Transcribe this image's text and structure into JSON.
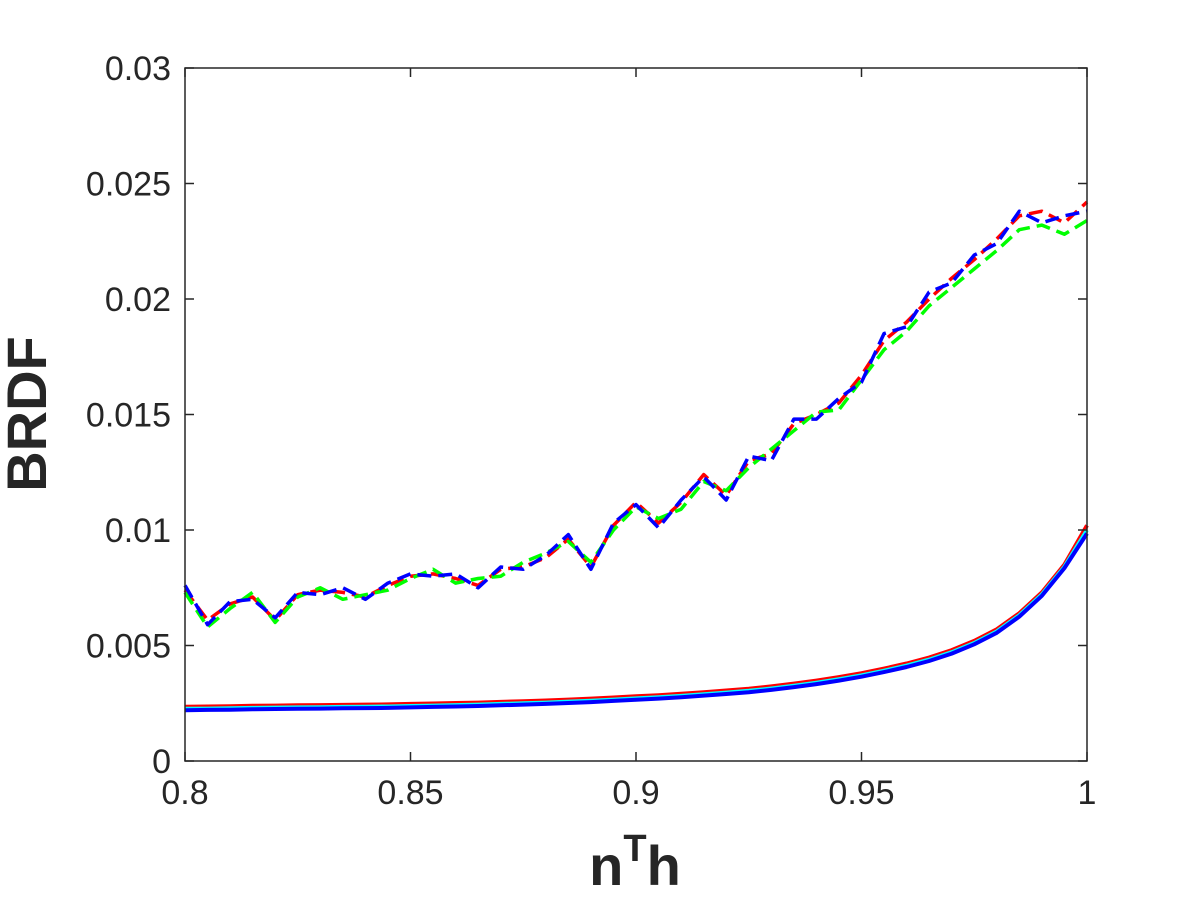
{
  "chart_data": {
    "type": "line",
    "title": "",
    "xlabel": "nTh",
    "xlabel_parts": {
      "base": "n",
      "sup": "T",
      "after": "h"
    },
    "ylabel": "BRDF",
    "xlim": [
      0.8,
      1.0
    ],
    "ylim": [
      0,
      0.03
    ],
    "x_ticks": [
      "0.8",
      "0.85",
      "0.9",
      "0.95",
      "1"
    ],
    "y_ticks": [
      "0",
      "0.005",
      "0.01",
      "0.015",
      "0.02",
      "0.025",
      "0.03"
    ],
    "grid": false,
    "legend": "none",
    "x": [
      0.8,
      0.805,
      0.81,
      0.815,
      0.82,
      0.825,
      0.83,
      0.835,
      0.84,
      0.845,
      0.85,
      0.855,
      0.86,
      0.865,
      0.87,
      0.875,
      0.88,
      0.885,
      0.89,
      0.895,
      0.9,
      0.905,
      0.91,
      0.915,
      0.92,
      0.925,
      0.93,
      0.935,
      0.94,
      0.945,
      0.95,
      0.955,
      0.96,
      0.965,
      0.97,
      0.975,
      0.98,
      0.985,
      0.99,
      0.995,
      1.0
    ],
    "series": [
      {
        "style": "solid",
        "color": "#ff0000",
        "values": [
          0.00235,
          0.00236,
          0.00237,
          0.00239,
          0.0024,
          0.00241,
          0.00242,
          0.00243,
          0.00244,
          0.00245,
          0.00247,
          0.00249,
          0.00251,
          0.00253,
          0.00256,
          0.00259,
          0.00262,
          0.00266,
          0.0027,
          0.00275,
          0.0028,
          0.00285,
          0.00291,
          0.00298,
          0.00305,
          0.00313,
          0.00323,
          0.00335,
          0.00348,
          0.00363,
          0.0038,
          0.004,
          0.00422,
          0.00448,
          0.0048,
          0.0052,
          0.0057,
          0.0064,
          0.0073,
          0.0085,
          0.0102
        ]
      },
      {
        "style": "solid",
        "color": "#00ffff",
        "values": [
          0.00226,
          0.00227,
          0.00228,
          0.0023,
          0.00231,
          0.00232,
          0.00233,
          0.00234,
          0.00235,
          0.00236,
          0.00238,
          0.0024,
          0.00242,
          0.00244,
          0.00247,
          0.0025,
          0.00253,
          0.00257,
          0.00261,
          0.00266,
          0.00271,
          0.00276,
          0.00282,
          0.00289,
          0.00296,
          0.00304,
          0.00314,
          0.00326,
          0.00339,
          0.00354,
          0.00371,
          0.00391,
          0.00413,
          0.00439,
          0.00471,
          0.00511,
          0.00561,
          0.00631,
          0.00721,
          0.00841,
          0.01
        ]
      },
      {
        "style": "solid",
        "color": "#0000ff",
        "values": [
          0.0022,
          0.00221,
          0.00222,
          0.00224,
          0.00225,
          0.00226,
          0.00227,
          0.00228,
          0.00229,
          0.0023,
          0.00232,
          0.00234,
          0.00236,
          0.00238,
          0.00241,
          0.00244,
          0.00247,
          0.00251,
          0.00255,
          0.0026,
          0.00265,
          0.0027,
          0.00276,
          0.00283,
          0.0029,
          0.00298,
          0.00308,
          0.0032,
          0.00333,
          0.00348,
          0.00365,
          0.00385,
          0.00407,
          0.00433,
          0.00465,
          0.00505,
          0.00555,
          0.00625,
          0.00715,
          0.00835,
          0.00985
        ]
      },
      {
        "style": "dashed",
        "color": "#ff0000",
        "values": [
          0.0074,
          0.0061,
          0.0068,
          0.0071,
          0.0061,
          0.0072,
          0.0074,
          0.0073,
          0.0071,
          0.0076,
          0.008,
          0.0081,
          0.0079,
          0.0076,
          0.0083,
          0.0084,
          0.0088,
          0.0096,
          0.0084,
          0.0102,
          0.0112,
          0.0103,
          0.0112,
          0.0124,
          0.0115,
          0.013,
          0.0133,
          0.0146,
          0.015,
          0.0155,
          0.0167,
          0.0182,
          0.019,
          0.02,
          0.0209,
          0.0217,
          0.0226,
          0.0236,
          0.0238,
          0.0233,
          0.0242
        ]
      },
      {
        "style": "dashed",
        "color": "#00ff00",
        "values": [
          0.0073,
          0.0058,
          0.0066,
          0.0073,
          0.006,
          0.0071,
          0.0075,
          0.007,
          0.0072,
          0.0074,
          0.0079,
          0.0083,
          0.0077,
          0.0079,
          0.008,
          0.0086,
          0.009,
          0.0095,
          0.0086,
          0.01,
          0.011,
          0.0105,
          0.0109,
          0.0121,
          0.0117,
          0.0127,
          0.0135,
          0.0143,
          0.0151,
          0.0152,
          0.0165,
          0.0178,
          0.0186,
          0.0197,
          0.0205,
          0.0213,
          0.0221,
          0.023,
          0.0232,
          0.0228,
          0.0234
        ]
      },
      {
        "style": "dashed",
        "color": "#0000ff",
        "values": [
          0.0076,
          0.0059,
          0.0069,
          0.007,
          0.0062,
          0.0073,
          0.0072,
          0.0075,
          0.007,
          0.0077,
          0.0081,
          0.008,
          0.0081,
          0.0075,
          0.0084,
          0.0083,
          0.0089,
          0.0098,
          0.0083,
          0.0103,
          0.0111,
          0.0101,
          0.0113,
          0.0123,
          0.0113,
          0.0132,
          0.013,
          0.0148,
          0.0148,
          0.0157,
          0.0164,
          0.0185,
          0.0188,
          0.0203,
          0.0207,
          0.0219,
          0.0224,
          0.0238,
          0.0233,
          0.0236,
          0.0238
        ]
      }
    ]
  }
}
